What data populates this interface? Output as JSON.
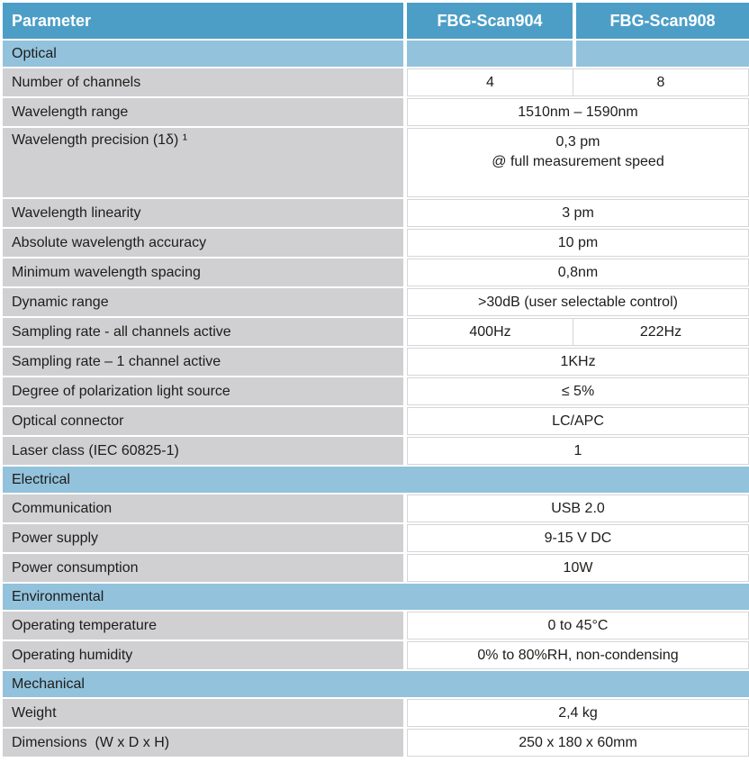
{
  "table": {
    "header": {
      "parameter": "Parameter",
      "col1": "FBG-Scan904",
      "col2": "FBG-Scan908"
    },
    "colors": {
      "header_bg": "#4c9ec7",
      "section_bg": "#93c2dc",
      "param_bg": "#d0d0d3",
      "cell_border": "#d6d6d8",
      "text": "#1d1d1b",
      "header_text": "#ffffff"
    },
    "sections": [
      {
        "label": "Optical",
        "rows": [
          {
            "parameter": "Number of channels",
            "values": [
              "4",
              "8"
            ]
          },
          {
            "parameter": "Wavelength range",
            "value": "1510nm – 1590nm"
          },
          {
            "parameter": "Wavelength precision (1δ) ¹",
            "value": "0,3 pm\n@ full measurement speed"
          },
          {
            "parameter": "Wavelength linearity",
            "value": "3 pm"
          },
          {
            "parameter": "Absolute wavelength accuracy",
            "value": "10 pm"
          },
          {
            "parameter": "Minimum wavelength spacing",
            "value": "0,8nm"
          },
          {
            "parameter": "Dynamic range",
            "value": ">30dB (user selectable control)"
          },
          {
            "parameter": "Sampling rate - all channels active",
            "values": [
              "400Hz",
              "222Hz"
            ]
          },
          {
            "parameter": "Sampling rate – 1 channel active",
            "value": "1KHz"
          },
          {
            "parameter": "Degree of polarization light source",
            "value": "≤ 5%"
          },
          {
            "parameter": "Optical connector",
            "value": "LC/APC"
          },
          {
            "parameter": "Laser class (IEC 60825-1)",
            "value": "1"
          }
        ]
      },
      {
        "label": "Electrical",
        "rows": [
          {
            "parameter": "Communication",
            "value": "USB 2.0"
          },
          {
            "parameter": "Power supply",
            "value": "9-15 V DC"
          },
          {
            "parameter": "Power consumption",
            "value": "10W"
          }
        ]
      },
      {
        "label": "Environmental",
        "rows": [
          {
            "parameter": "Operating temperature",
            "value": "0 to 45°C"
          },
          {
            "parameter": "Operating humidity",
            "value": "0% to 80%RH, non-condensing"
          }
        ]
      },
      {
        "label": "Mechanical",
        "rows": [
          {
            "parameter": "Weight",
            "value": "2,4 kg"
          },
          {
            "parameter": "Dimensions  (W x D x H)",
            "value": "250 x 180 x 60mm"
          }
        ]
      }
    ]
  }
}
